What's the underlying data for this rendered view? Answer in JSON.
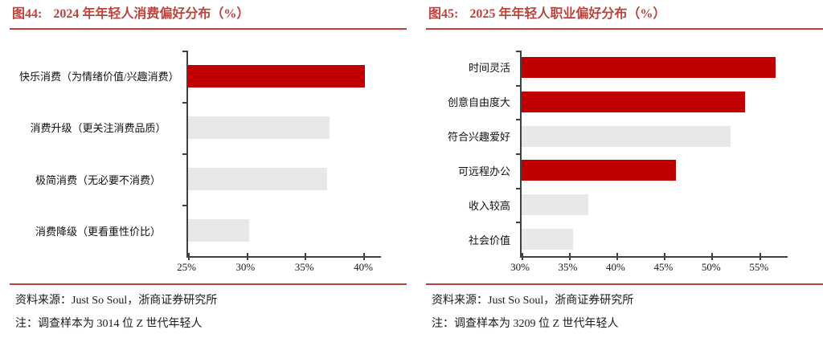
{
  "colors": {
    "accent_red": "#bc423c",
    "bar_red": "#c00000",
    "bar_gray": "#e8e8e8",
    "axis": "#404040"
  },
  "chart_data": [
    {
      "type": "bar",
      "orientation": "horizontal",
      "figure_label": "图44:",
      "title": "2024 年年轻人消费偏好分布（%）",
      "categories": [
        "快乐消费（为情绪价值/兴趣消费）",
        "消费升级（更关注消费品质）",
        "极简消费（无必要不消费）",
        "消费降级（更看重性价比）"
      ],
      "values": [
        40.1,
        37.1,
        36.9,
        30.2
      ],
      "bar_colors": [
        "#c00000",
        "#e8e8e8",
        "#e8e8e8",
        "#e8e8e8"
      ],
      "axis": {
        "min": 25,
        "max": 41.5,
        "tick_values": [
          25,
          30,
          35,
          40
        ],
        "tick_labels": [
          "25%",
          "30%",
          "35%",
          "40%"
        ]
      },
      "grid": false,
      "legend": false,
      "source": "资料来源：Just So Soul，浙商证券研究所",
      "note": "注：调查样本为 3014 位 Z 世代年轻人"
    },
    {
      "type": "bar",
      "orientation": "horizontal",
      "figure_label": "图45:",
      "title": "2025 年年轻人职业偏好分布（%）",
      "categories": [
        "时间灵活",
        "创意自由度大",
        "符合兴趣爱好",
        "可远程办公",
        "收入较高",
        "社会价值"
      ],
      "values": [
        56.7,
        53.5,
        52.0,
        46.2,
        37.0,
        35.4
      ],
      "bar_colors": [
        "#c00000",
        "#c00000",
        "#e8e8e8",
        "#c00000",
        "#e8e8e8",
        "#e8e8e8"
      ],
      "axis": {
        "min": 30,
        "max": 58,
        "tick_values": [
          30,
          35,
          40,
          45,
          50,
          55
        ],
        "tick_labels": [
          "30%",
          "35%",
          "40%",
          "45%",
          "50%",
          "55%"
        ]
      },
      "grid": false,
      "legend": false,
      "source": "资料来源：Just So Soul，浙商证券研究所",
      "note": "注：调查样本为 3209 位 Z 世代年轻人"
    }
  ]
}
